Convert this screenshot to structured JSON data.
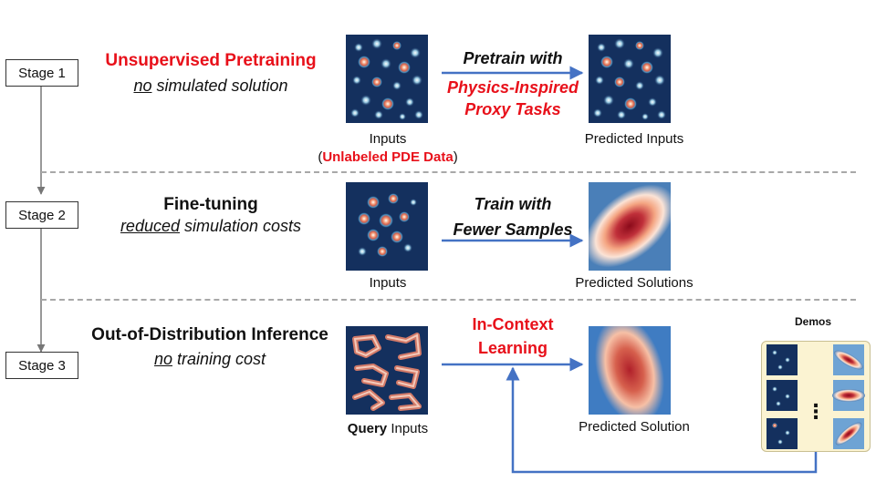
{
  "stages": [
    {
      "label": "Stage 1"
    },
    {
      "label": "Stage 2"
    },
    {
      "label": "Stage 3"
    }
  ],
  "stage1": {
    "title": "Unsupervised Pretraining",
    "sub_em": "no",
    "sub_rest": " simulated solution",
    "arrow_line1": "Pretrain with",
    "arrow_line2": "Physics-Inspired",
    "arrow_line3": "Proxy Tasks",
    "input_label": "Inputs",
    "unlabeled_open": "(",
    "unlabeled_text": "Unlabeled PDE Data",
    "unlabeled_close": ")",
    "output_label": "Predicted Inputs"
  },
  "stage2": {
    "title": "Fine-tuning",
    "sub_em": "reduced",
    "sub_rest": " simulation costs",
    "arrow_line1": "Train with",
    "arrow_line2": "Fewer Samples",
    "input_label": "Inputs",
    "output_label": "Predicted Solutions"
  },
  "stage3": {
    "title": "Out-of-Distribution Inference",
    "sub_em": "no",
    "sub_rest": " training cost",
    "arrow_line1": "In-Context",
    "arrow_line2": "Learning",
    "input_label_bold": "Query",
    "input_label_rest": " Inputs",
    "output_label": "Predicted Solution"
  },
  "demos": {
    "title": "Demos",
    "ellipsis": "⋮"
  },
  "colors": {
    "red": "#e8101a",
    "arrow": "#4472c4",
    "dash": "#a8a8a8",
    "demo_bg": "#fbf3d2"
  }
}
